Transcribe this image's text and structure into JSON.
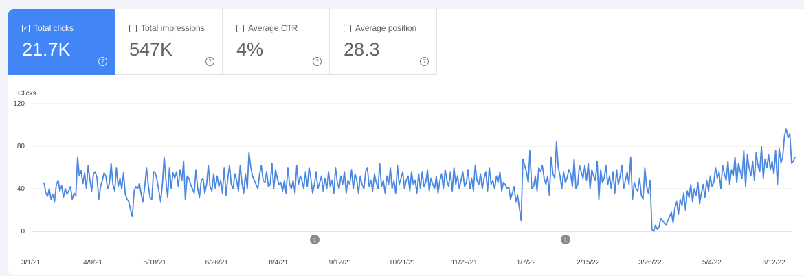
{
  "metrics": [
    {
      "label": "Total clicks",
      "value": "21.7K",
      "active": true
    },
    {
      "label": "Total impressions",
      "value": "547K",
      "active": false
    },
    {
      "label": "Average CTR",
      "value": "4%",
      "active": false
    },
    {
      "label": "Average position",
      "value": "28.3",
      "active": false
    }
  ],
  "colors": {
    "accent": "#4285f4",
    "line": "#4a87e0",
    "grid": "#e8e8e8"
  },
  "icons": {
    "help": "help-circle-icon",
    "check": "check-icon",
    "annotation": "annotation-marker-icon"
  },
  "chart_data": {
    "type": "line",
    "ylabel": "Clicks",
    "ylim": [
      0,
      120
    ],
    "yticks": [
      "120",
      "80",
      "40",
      "0"
    ],
    "xticks": [
      "3/1/21",
      "4/9/21",
      "5/18/21",
      "6/26/21",
      "8/4/21",
      "9/12/21",
      "10/21/21",
      "11/29/21",
      "1/7/22",
      "2/15/22",
      "3/26/22",
      "5/4/22",
      "6/12/22"
    ],
    "annotations": [
      {
        "label": "1",
        "x": "8/30/21"
      },
      {
        "label": "1",
        "x": "2/1/22"
      }
    ],
    "series": [
      {
        "name": "Clicks",
        "values": [
          46,
          36,
          33,
          40,
          30,
          35,
          28,
          44,
          48,
          38,
          43,
          32,
          40,
          35,
          38,
          42,
          30,
          36,
          33,
          70,
          52,
          57,
          45,
          55,
          40,
          62,
          48,
          38,
          54,
          56,
          50,
          30,
          42,
          48,
          55,
          52,
          40,
          45,
          64,
          44,
          38,
          60,
          42,
          50,
          40,
          55,
          35,
          30,
          28,
          20,
          14,
          38,
          42,
          40,
          45,
          35,
          28,
          42,
          60,
          44,
          32,
          30,
          56,
          55,
          48,
          38,
          28,
          44,
          70,
          48,
          32,
          60,
          40,
          55,
          50,
          56,
          42,
          58,
          48,
          66,
          30,
          52,
          50,
          44,
          40,
          36,
          58,
          40,
          32,
          48,
          50,
          36,
          44,
          62,
          42,
          38,
          54,
          40,
          52,
          42,
          48,
          36,
          60,
          34,
          50,
          62,
          44,
          40,
          54,
          48,
          38,
          62,
          46,
          36,
          54,
          40,
          74,
          60,
          52,
          48,
          44,
          40,
          54,
          62,
          48,
          46,
          56,
          42,
          44,
          64,
          40,
          58,
          50,
          44,
          46,
          38,
          48,
          36,
          60,
          44,
          40,
          48,
          36,
          62,
          44,
          52,
          48,
          40,
          56,
          42,
          60,
          50,
          36,
          44,
          56,
          40,
          46,
          52,
          38,
          50,
          40,
          56,
          42,
          48,
          36,
          60,
          46,
          40,
          52,
          44,
          56,
          36,
          48,
          44,
          58,
          40,
          54,
          48,
          36,
          52,
          44,
          40,
          56,
          60,
          42,
          48,
          38,
          54,
          46,
          40,
          64,
          42,
          48,
          36,
          52,
          44,
          60,
          40,
          48,
          36,
          62,
          44,
          50,
          56,
          40,
          48,
          52,
          38,
          56,
          44,
          48,
          36,
          54,
          40,
          56,
          42,
          46,
          58,
          38,
          50,
          44,
          40,
          52,
          36,
          48,
          54,
          40,
          58,
          48,
          42,
          56,
          38,
          60,
          44,
          52,
          40,
          48,
          56,
          42,
          46,
          58,
          40,
          50,
          38,
          62,
          48,
          44,
          54,
          40,
          50,
          56,
          38,
          60,
          44,
          48,
          40,
          52,
          46,
          56,
          38,
          46,
          44,
          40,
          42,
          30,
          36,
          42,
          28,
          34,
          22,
          10,
          68,
          62,
          56,
          46,
          76,
          40,
          42,
          52,
          38,
          60,
          56,
          62,
          50,
          44,
          52,
          34,
          70,
          54,
          50,
          84,
          60,
          52,
          40,
          56,
          46,
          50,
          58,
          54,
          42,
          68,
          40,
          44,
          62,
          56,
          50,
          62,
          48,
          64,
          40,
          58,
          52,
          48,
          66,
          30,
          58,
          46,
          50,
          62,
          44,
          52,
          40,
          56,
          36,
          58,
          44,
          52,
          62,
          40,
          48,
          56,
          44,
          70,
          30,
          46,
          40,
          38,
          50,
          34,
          30,
          60,
          42,
          36,
          48,
          2,
          0,
          6,
          2,
          4,
          12,
          10,
          8,
          6,
          10,
          14,
          18,
          8,
          22,
          28,
          16,
          30,
          24,
          36,
          20,
          38,
          32,
          44,
          28,
          40,
          34,
          46,
          26,
          36,
          44,
          32,
          48,
          38,
          52,
          42,
          46,
          60,
          50,
          56,
          40,
          62,
          54,
          48,
          66,
          44,
          58,
          52,
          70,
          46,
          64,
          56,
          50,
          76,
          42,
          72,
          60,
          52,
          66,
          48,
          74,
          62,
          56,
          80,
          50,
          68,
          60,
          72,
          58,
          66,
          54,
          76,
          44,
          78,
          64,
          70,
          90,
          96,
          88,
          92,
          64,
          66,
          70
        ]
      }
    ]
  }
}
